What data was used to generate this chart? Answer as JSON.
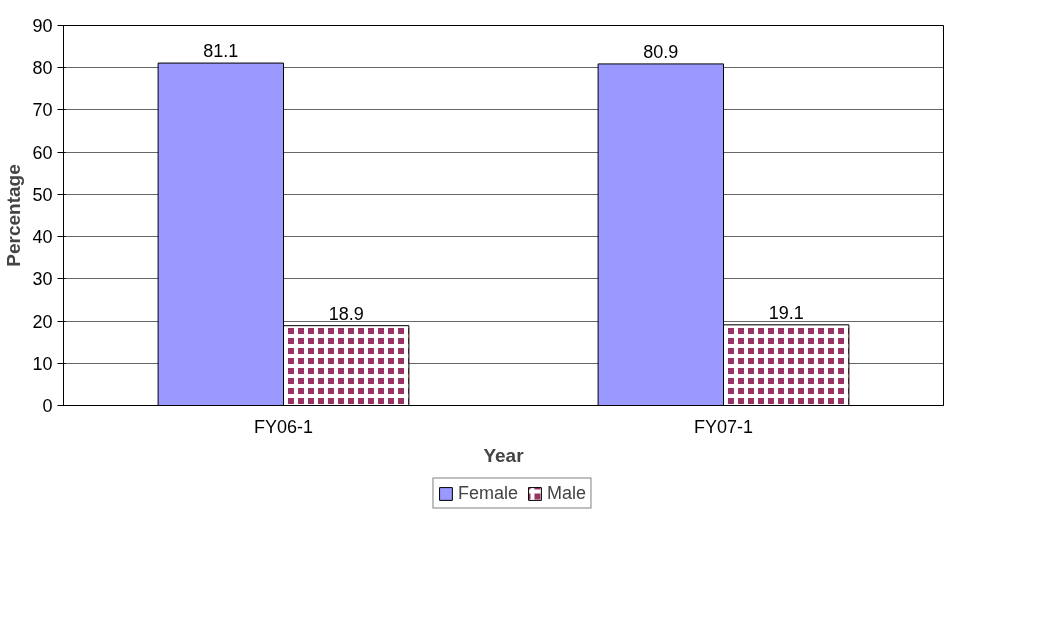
{
  "chart_data": {
    "type": "bar",
    "xlabel": "Year",
    "ylabel": "Percentage",
    "categories": [
      "FY06-1",
      "FY07-1"
    ],
    "series": [
      {
        "name": "Female",
        "color": "#9999ff",
        "values": [
          81.1,
          80.9
        ]
      },
      {
        "name": "Male",
        "color": "#993366",
        "values": [
          18.9,
          19.1
        ]
      }
    ],
    "ylim": [
      0,
      90
    ],
    "yticks": [
      0,
      10,
      20,
      30,
      40,
      50,
      60,
      70,
      80,
      90
    ],
    "grid": "y",
    "legend": "bottom",
    "data_labels": true
  }
}
